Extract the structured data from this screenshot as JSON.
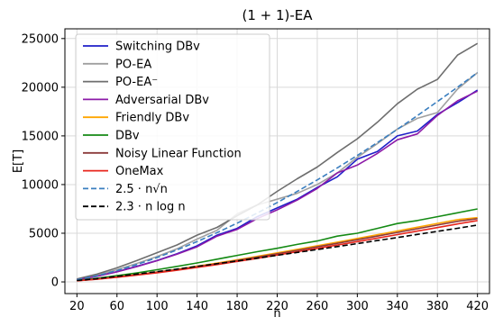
{
  "chart_data": {
    "type": "line",
    "title": "(1 + 1)-EA",
    "xlabel": "n",
    "ylabel": "E[T]",
    "xlim": [
      8,
      432
    ],
    "ylim": [
      -1200,
      26000
    ],
    "x_ticks": [
      20,
      60,
      100,
      140,
      180,
      220,
      260,
      300,
      340,
      380,
      420
    ],
    "y_ticks": [
      0,
      5000,
      10000,
      15000,
      20000,
      25000
    ],
    "grid": true,
    "legend_position": "top-left",
    "x": [
      20,
      40,
      60,
      80,
      100,
      120,
      140,
      160,
      180,
      200,
      220,
      240,
      260,
      280,
      300,
      320,
      340,
      360,
      380,
      400,
      420
    ],
    "series": [
      {
        "name": "Switching DBv",
        "color": "#1f1fc8",
        "dash": "solid",
        "values": [
          230,
          600,
          1050,
          1600,
          2200,
          2900,
          3700,
          4800,
          5500,
          6700,
          7600,
          8500,
          9700,
          10800,
          12600,
          13400,
          15000,
          15500,
          17200,
          18400,
          19700
        ]
      },
      {
        "name": "PO-EA",
        "color": "#a0a0a0",
        "dash": "solid",
        "values": [
          260,
          700,
          1250,
          1900,
          2600,
          3400,
          4400,
          5300,
          7000,
          7900,
          8500,
          9100,
          10000,
          11200,
          12800,
          14200,
          15700,
          16800,
          17400,
          19800,
          21500
        ]
      },
      {
        "name": "PO-EA⁻",
        "color": "#6e6e6e",
        "dash": "solid",
        "values": [
          300,
          800,
          1450,
          2200,
          3000,
          3800,
          4800,
          5600,
          6800,
          7900,
          9300,
          10600,
          11800,
          13300,
          14700,
          16400,
          18300,
          19800,
          20800,
          23300,
          24500
        ]
      },
      {
        "name": "Adversarial DBv",
        "color": "#8c1aa8",
        "dash": "solid",
        "values": [
          220,
          580,
          1030,
          1580,
          2180,
          2850,
          3600,
          4700,
          5400,
          6500,
          7400,
          8400,
          9600,
          11200,
          12000,
          13200,
          14600,
          15200,
          17100,
          18600,
          19600
        ]
      },
      {
        "name": "Friendly DBv",
        "color": "#ffa500",
        "dash": "solid",
        "values": [
          130,
          300,
          520,
          760,
          1020,
          1300,
          1610,
          1930,
          2270,
          2620,
          2980,
          3340,
          3710,
          4080,
          4460,
          4850,
          5230,
          5620,
          6010,
          6400,
          6600
        ]
      },
      {
        "name": "DBv",
        "color": "#148a14",
        "dash": "solid",
        "values": [
          150,
          370,
          640,
          930,
          1250,
          1590,
          1950,
          2330,
          2720,
          3100,
          3450,
          3850,
          4200,
          4700,
          5000,
          5500,
          6000,
          6300,
          6700,
          7100,
          7500
        ]
      },
      {
        "name": "Noisy Linear Function",
        "color": "#8b3a3a",
        "dash": "solid",
        "values": [
          120,
          290,
          500,
          740,
          990,
          1260,
          1560,
          1870,
          2200,
          2540,
          2890,
          3240,
          3600,
          3960,
          4330,
          4700,
          5080,
          5460,
          5840,
          6220,
          6500
        ]
      },
      {
        "name": "OneMax",
        "color": "#e8251c",
        "dash": "solid",
        "values": [
          110,
          270,
          470,
          700,
          940,
          1200,
          1480,
          1780,
          2100,
          2420,
          2760,
          3100,
          3440,
          3790,
          4140,
          4500,
          4860,
          5220,
          5580,
          5950,
          6300
        ]
      },
      {
        "name": "2.5 · n√n",
        "color": "#3a7ebf",
        "dash": "dashed",
        "values": [
          224,
          632,
          1162,
          1789,
          2500,
          3286,
          4141,
          5060,
          6037,
          7071,
          8158,
          9295,
          10480,
          11713,
          12990,
          14311,
          15674,
          17078,
          18521,
          20000,
          21517
        ]
      },
      {
        "name": "2.3 · n log n",
        "color": "#000000",
        "dash": "dashed",
        "values": [
          138,
          339,
          565,
          806,
          1059,
          1321,
          1592,
          1867,
          2150,
          2437,
          2730,
          3025,
          3324,
          3627,
          3935,
          4245,
          4558,
          4874,
          5192,
          5512,
          5836
        ]
      }
    ]
  }
}
